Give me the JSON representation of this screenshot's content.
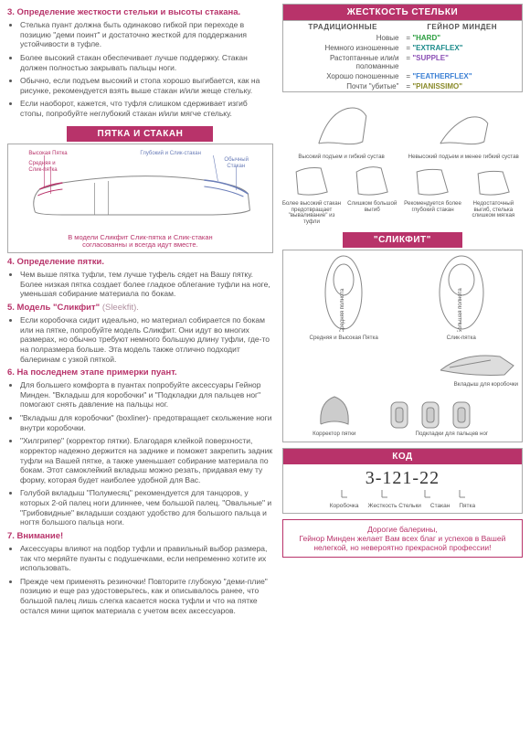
{
  "colors": {
    "accent": "#b8336a",
    "text": "#555",
    "border": "#aaa",
    "stiffness": {
      "hard": "#2a9d3e",
      "extraflex": "#1b8a8a",
      "supple": "#8a4fb5",
      "featherflex": "#3a7fd4",
      "pianissimo": "#8a8a2a"
    }
  },
  "s3": {
    "title": "3. Определение жесткости стельки и высоты стакана.",
    "items": [
      "Стелька пуант должна быть одинаково гибкой при переходе в позицию \"деми поинт\" и достаточно жесткой для поддержания устойчивости в туфле.",
      "Более высокий стакан обеспечивает лучше поддержку. Стакан должен полностью закрывать пальцы ноги.",
      "Обычно, если подъем высокий и стопа хорошо выгибается, как на рисунке, рекомендуется взять выше стакан и/или жеще стельку.",
      "Если наоборот, кажется, что туфля слишком сдерживает изгиб стопы, попробуйте неглубокий стакан и/или мягче стельку."
    ]
  },
  "stiffness": {
    "header": "ЖЕСТКОСТЬ СТЕЛЬКИ",
    "col1": "ТРАДИЦИОННЫЕ",
    "col2": "ГЕЙНОР МИНДЕН",
    "rows": [
      {
        "trad": "Новые",
        "sep": "=",
        "gm": "\"HARD\"",
        "cls": "c-green"
      },
      {
        "trad": "Немного изношенные",
        "sep": "=",
        "gm": "\"EXTRAFLEX\"",
        "cls": "c-teal"
      },
      {
        "trad": "Растоптанные или/и поломанные",
        "sep": "=",
        "gm": "\"SUPPLE\"",
        "cls": "c-purple"
      },
      {
        "trad": "Хорошо поношенные",
        "sep": "=",
        "gm": "\"FEATHERFLEX\"",
        "cls": "c-blue"
      },
      {
        "trad": "Почти \"убитые\"",
        "sep": "=",
        "gm": "\"PIANISSIMO\"",
        "cls": "c-olive"
      }
    ]
  },
  "heel": {
    "header": "ПЯТКА И СТАКАН",
    "labels": {
      "high_heel": "Высокая Пятка",
      "med_heel": "Средняя и Слик-пятка",
      "deep_vamp": "Глубокий и Слик-стакан",
      "reg_vamp": "Обычный Стакан"
    },
    "note_l1": "В модели Сликфит Слик-пятка и Слик-стакан",
    "note_l2": "согласованны и всегда идут вместе."
  },
  "shoe_diag": {
    "top": [
      "Высокий подъем и гибкий сустав",
      "",
      "",
      "Невысокий подъем и менее гибкий сустав"
    ],
    "bot": [
      "Более высокий стакан предотвращает \"вываливание\" из туфли",
      "Слишком большой выгиб",
      "Рекомендуется более глубокий стакан",
      "Недостаточный выгиб, стелька слишком мягкая"
    ]
  },
  "s4": {
    "title": "4. Определение пятки.",
    "items": [
      "Чем выше пятка туфли, тем лучше туфель сядет на Вашу пятку. Более низкая пятка создает более гладкое облегание туфли на ноге, уменьшая собирание материала по бокам."
    ]
  },
  "s5": {
    "title": "5. Модель \"Сликфит\"",
    "title_en": "(Sleekfit).",
    "items": [
      "Если коробочка сидит идеально, но материал собирается по бокам или на пятке, попробуйте модель Сликфит. Они идут во многих размерах, но обычно требуют немного большую длину туфли, где-то на полразмера больше. Эта модель также отлично подходит балеринам с узкой пяткой."
    ]
  },
  "sleek": {
    "header": "\"СЛИКФИТ\"",
    "labels": {
      "med_width": "Средняя полнота",
      "wide": "Большая полнота",
      "med_heel": "Средняя и Высокая Пятка",
      "sleek_heel": "Слик-пятка",
      "box_liner": "Вкладыш для коробочки",
      "heel_grip": "Корректор пятки",
      "toe_pads": "Подкладки для пальцев ног"
    }
  },
  "s6": {
    "title": "6. На последнем этапе примерки пуант.",
    "items": [
      "Для большего комфорта в пуантах попробуйте аксессуары Гейнор Минден. \"Вкладыш для коробочки\" и \"Подкладки для пальцев ног\" помогают снять давление на пальцы ног.",
      "\"Вкладыш для коробочки\" (boxliner)- предотвращает скольжение ноги внутри коробочки.",
      "\"Хилгрипер\" (корректор пятки). Благодаря клейкой поверхности, корректор надежно держится на заднике и поможет закрепить задник туфли на Вашей пятке, а также уменьшает собирание материала по бокам. Этот самоклейкий вкладыш можно резать, придавая ему ту форму, которая будет наиболее удобной для Вас.",
      "Голубой вкладыш \"Полумесяц\" рекомендуется для танцоров, у которых 2-ой палец ноги длиннее, чем большой палец. \"Овальные\" и \"Грибовидные\" вкладыши создают удобство для большого пальца и ногтя большого пальца ноги."
    ]
  },
  "s7": {
    "title": "7. Внимание!",
    "items": [
      "Аксессуары влияют на подбор туфли и правильный выбор размера, так что меряйте пуанты с подушечками, если непременно хотите их использовать.",
      "Прежде чем применять резиночки! Повторите глубокую \"деми-плие\" позицию и еще раз удостоверьтесь, как и описывалось ранее, что большой палец лишь слегка касается носка туфли и что на пятке остался мини щипок материала с учетом всех аксессуаров."
    ]
  },
  "code": {
    "header": "КОД",
    "value": "3-121-22",
    "labels": [
      "Коробочка",
      "Жесткость Стельки",
      "Стакан",
      "Пятка"
    ]
  },
  "farewell": "Дорогие балерины,\nГейнор Минден желает Вам всех благ и успехов в Вашей нелегкой, но невероятно прекрасной профессии!"
}
